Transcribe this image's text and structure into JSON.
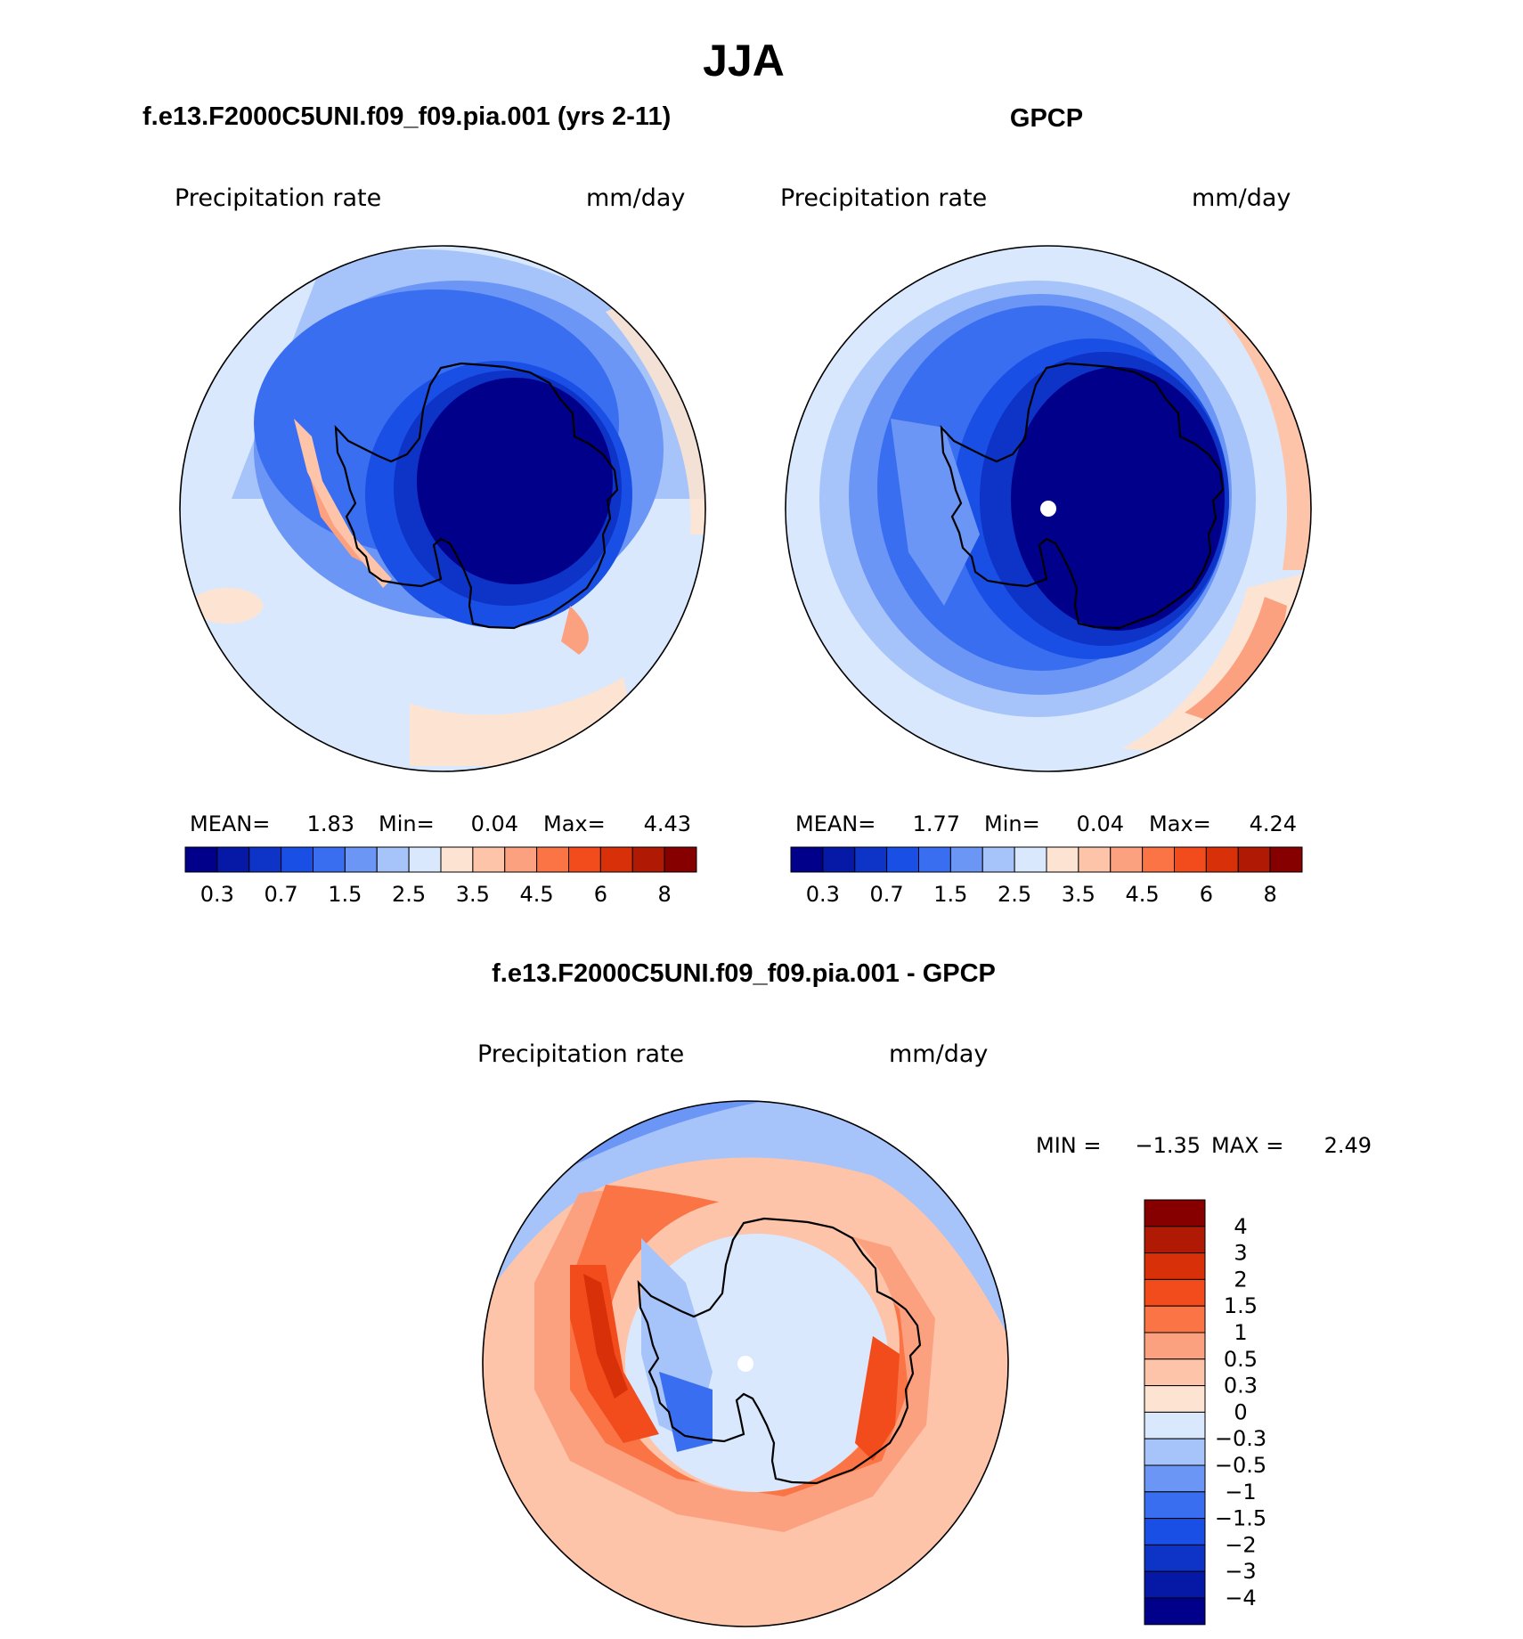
{
  "chart_data": [
    {
      "type": "heatmap",
      "projection": "south-polar stereographic",
      "title": "f.e13.F2000C5UNI.f09_f09.pia.001 (yrs 2-11)",
      "left_label": "Precipitation  rate",
      "units": "mm/day",
      "stats": {
        "mean_label": "MEAN=",
        "mean": "1.83",
        "min_label": "Min=",
        "min": "0.04",
        "max_label": "Max=",
        "max": "4.43"
      },
      "colorbar": {
        "orientation": "horizontal",
        "tick_labels": [
          "0.3",
          "0.7",
          "1.5",
          "2.5",
          "3.5",
          "4.5",
          "6",
          "8"
        ]
      }
    },
    {
      "type": "heatmap",
      "projection": "south-polar stereographic",
      "title": "GPCP",
      "left_label": "Precipitation  rate",
      "units": "mm/day",
      "stats": {
        "mean_label": "MEAN=",
        "mean": "1.77",
        "min_label": "Min=",
        "min": "0.04",
        "max_label": "Max=",
        "max": "4.24"
      },
      "colorbar": {
        "orientation": "horizontal",
        "tick_labels": [
          "0.3",
          "0.7",
          "1.5",
          "2.5",
          "3.5",
          "4.5",
          "6",
          "8"
        ]
      }
    },
    {
      "type": "heatmap",
      "projection": "south-polar stereographic",
      "title": "f.e13.F2000C5UNI.f09_f09.pia.001 - GPCP",
      "left_label": "Precipitation  rate",
      "units": "mm/day",
      "stats": {
        "min_label": "MIN  =",
        "min": "−1.35",
        "max_label": "MAX  =",
        "max": "2.49"
      },
      "colorbar": {
        "orientation": "vertical",
        "tick_labels": [
          "4",
          "3",
          "2",
          "1.5",
          "1",
          "0.5",
          "0.3",
          "0",
          "−0.3",
          "−0.5",
          "−1",
          "−1.5",
          "−2",
          "−3",
          "−4"
        ]
      }
    }
  ],
  "figure": {
    "title": "JJA"
  },
  "colors": {
    "seq": [
      "#00008b",
      "#0619a6",
      "#0d33c7",
      "#1a4fe6",
      "#3a6ef0",
      "#6b96f5",
      "#a6c3fa",
      "#d9e8fd",
      "#fde4d2",
      "#fdc4aa",
      "#fca17f",
      "#fa7446",
      "#f24b1c",
      "#d83008",
      "#b01a04",
      "#870000"
    ],
    "div": [
      "#870000",
      "#b01a04",
      "#d83008",
      "#f24b1c",
      "#fa7446",
      "#fca17f",
      "#fdc4aa",
      "#fde4d2",
      "#d9e8fd",
      "#a6c3fa",
      "#6b96f5",
      "#3a6ef0",
      "#1a4fe6",
      "#0d33c7",
      "#0619a6",
      "#00008b"
    ]
  }
}
